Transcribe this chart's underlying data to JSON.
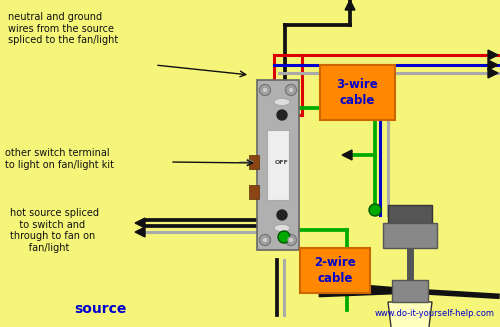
{
  "bg_color": "#f5f57a",
  "website": "www.do-it-yourself-help.com",
  "labels": {
    "neutral_ground": "neutral and ground\nwires from the source\nspliced to the fan/light",
    "other_switch": "other switch terminal\nto light on fan/light kit",
    "hot_source": "hot source spliced\n   to switch and\nthrough to fan on\n      fan/light",
    "source": "source",
    "cable_3wire": "3-wire\ncable",
    "cable_2wire": "2-wire\ncable"
  },
  "wire_red": "#dd0000",
  "wire_green": "#00aa00",
  "wire_blue": "#0000cc",
  "wire_gray": "#aaaaaa",
  "wire_black": "#111111",
  "switch_gray": "#b0b0b0",
  "switch_dark": "#777777",
  "fan_dark": "#555555",
  "fan_gray": "#999999",
  "orange_box": "#ff8800",
  "label_color": "#0000cc",
  "lw": 2.2
}
